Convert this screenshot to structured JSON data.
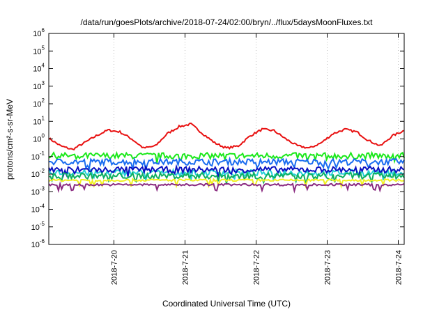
{
  "chart_data": {
    "type": "line",
    "title": "/data/run/goesPlots/archive/2018-07-24/02:00/bryn/../flux/5daysMoonFluxes.txt",
    "xlabel": "Coordinated Universal Time (UTC)",
    "ylabel": "protons/cm²-s-sr-MeV",
    "y_scale": "log",
    "ylim_exponents": [
      -6,
      6
    ],
    "y_tick_exponents": [
      -6,
      -5,
      -4,
      -3,
      -2,
      -1,
      0,
      1,
      2,
      3,
      4,
      5,
      6
    ],
    "x_range": [
      "2018-07-19 02:00",
      "2018-07-24 02:00"
    ],
    "x_ticks": [
      {
        "label": "2018-7-20",
        "t": "2018-07-20 00:00"
      },
      {
        "label": "2018-7-21",
        "t": "2018-07-21 00:00"
      },
      {
        "label": "2018-7-22",
        "t": "2018-07-22 00:00"
      },
      {
        "label": "2018-7-23",
        "t": "2018-07-23 00:00"
      },
      {
        "label": "2018-7-24",
        "t": "2018-07-24 00:00"
      }
    ],
    "grid": true,
    "legend": "none",
    "series": [
      {
        "color": "#e81010",
        "x": [
          "2018-07-19 02:00",
          "2018-07-19 06:00",
          "2018-07-19 10:00",
          "2018-07-19 14:00",
          "2018-07-19 18:00",
          "2018-07-19 22:00",
          "2018-07-20 02:00",
          "2018-07-20 06:00",
          "2018-07-20 10:00",
          "2018-07-20 14:00",
          "2018-07-20 18:00",
          "2018-07-20 22:00",
          "2018-07-21 02:00",
          "2018-07-21 06:00",
          "2018-07-21 10:00",
          "2018-07-21 14:00",
          "2018-07-21 18:00",
          "2018-07-21 22:00",
          "2018-07-22 02:00",
          "2018-07-22 06:00",
          "2018-07-22 10:00",
          "2018-07-22 14:00",
          "2018-07-22 18:00",
          "2018-07-22 22:00",
          "2018-07-23 02:00",
          "2018-07-23 06:00",
          "2018-07-23 10:00",
          "2018-07-23 14:00",
          "2018-07-23 18:00",
          "2018-07-23 22:00",
          "2018-07-24 02:00"
        ],
        "y": [
          1.1,
          0.4,
          0.25,
          0.6,
          1.5,
          3.2,
          2.5,
          1.0,
          0.3,
          0.4,
          2.0,
          5.0,
          7.0,
          2.0,
          0.6,
          0.3,
          0.4,
          1.5,
          3.5,
          3.0,
          1.0,
          0.4,
          0.3,
          0.6,
          2.0,
          3.5,
          2.5,
          0.8,
          0.4,
          1.5,
          3.0
        ]
      },
      {
        "color": "#1ae81a",
        "level": 0.11
      },
      {
        "color": "#1a6cf0",
        "level": 0.05
      },
      {
        "color": "#22d0d8",
        "level": 0.012
      },
      {
        "color": "#0a10c0",
        "level": 0.018
      },
      {
        "color": "#10b060",
        "level": 0.008
      },
      {
        "color": "#f0f020",
        "level": 0.0045
      },
      {
        "color": "#8a2a80",
        "level": 0.0025
      }
    ]
  }
}
